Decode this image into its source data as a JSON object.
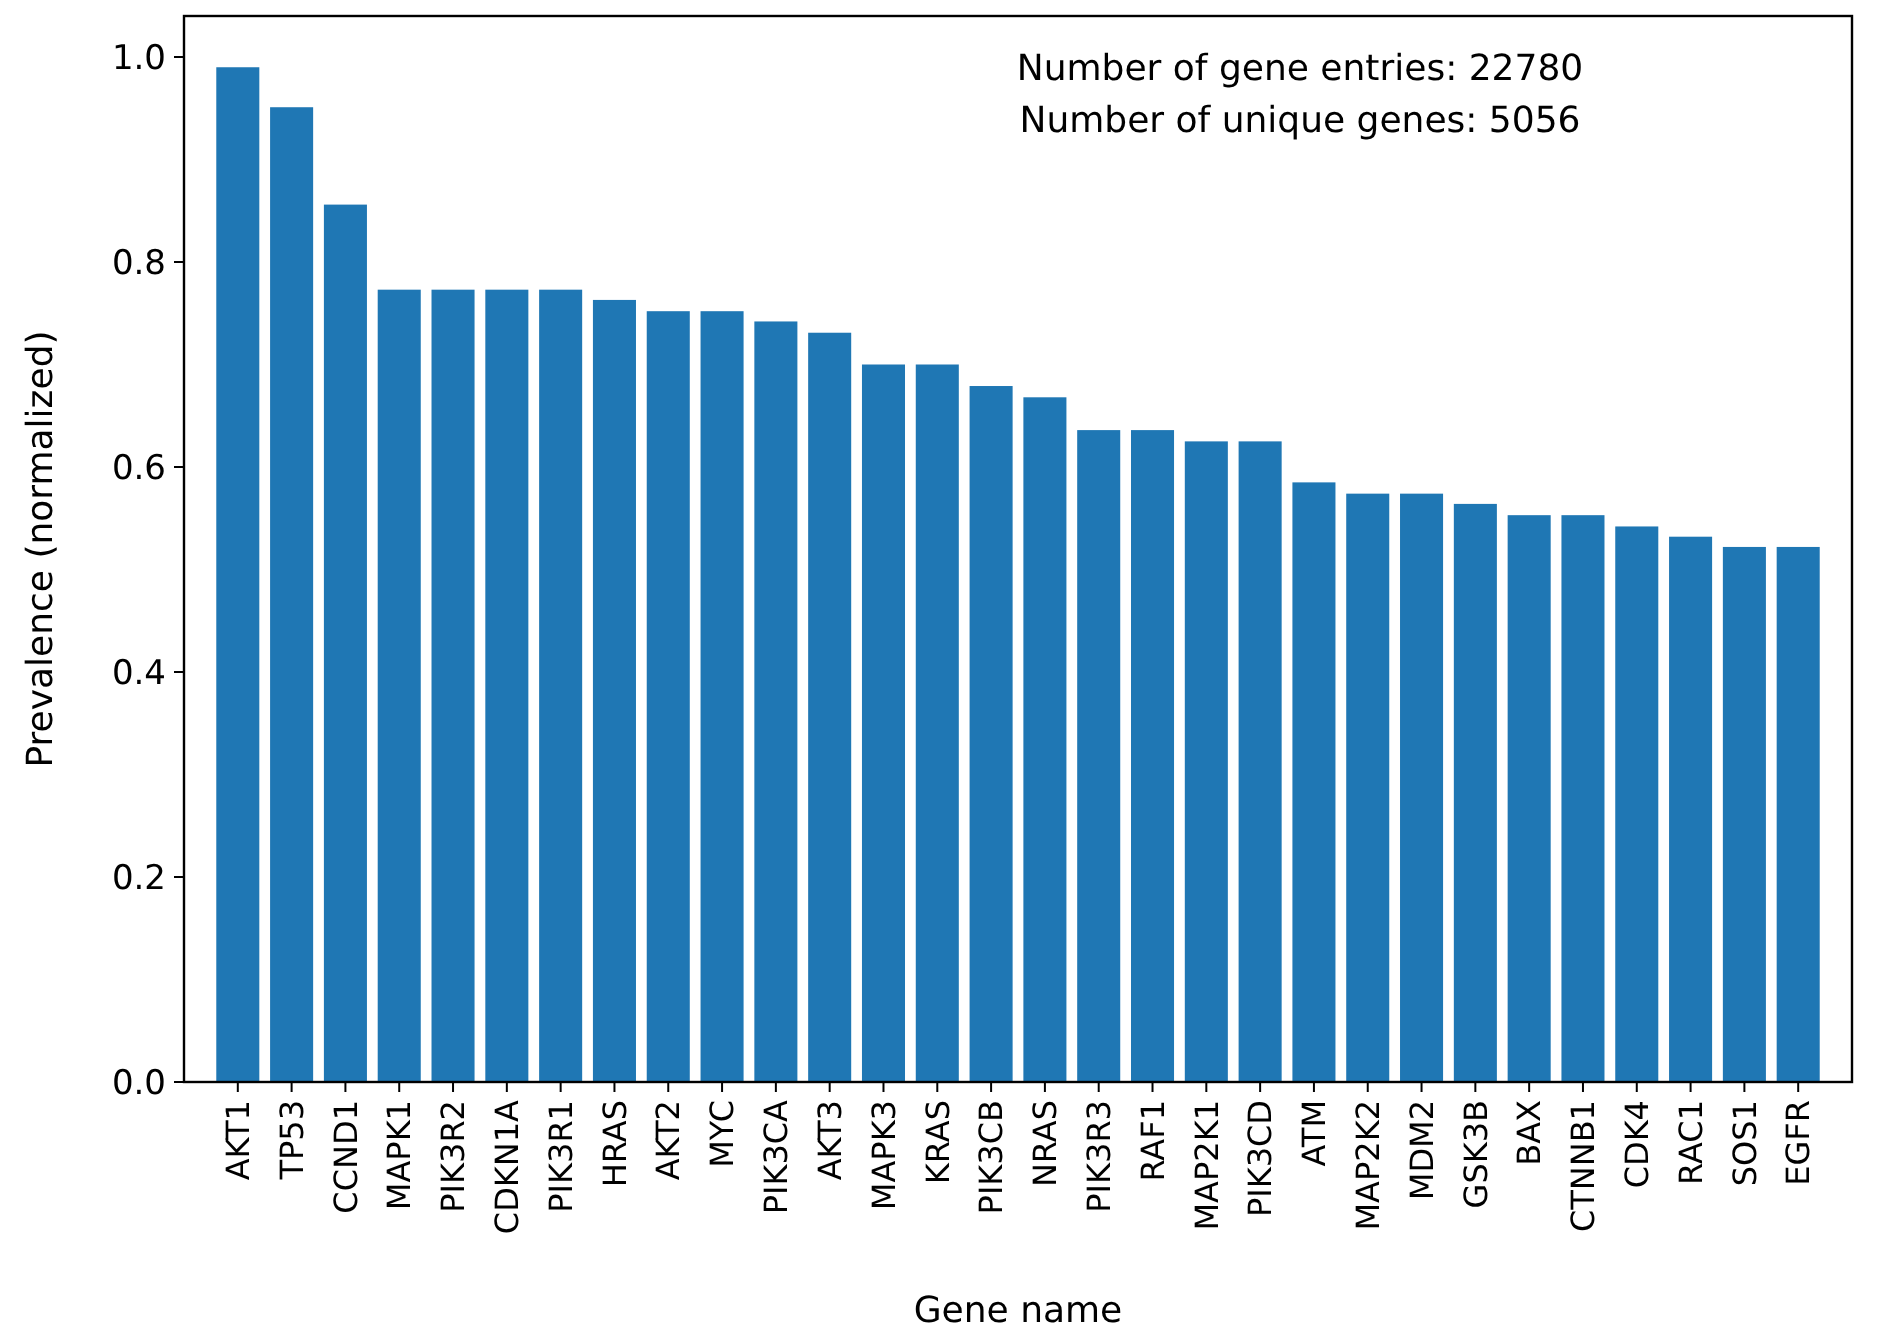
{
  "chart_data": {
    "type": "bar",
    "xlabel": "Gene name",
    "ylabel": "Prevalence (normalized)",
    "annotations": [
      "Number of gene entries: 22780",
      "Number of unique genes: 5056"
    ],
    "categories": [
      "AKT1",
      "TP53",
      "CCND1",
      "MAPK1",
      "PIK3R2",
      "CDKN1A",
      "PIK3R1",
      "HRAS",
      "AKT2",
      "MYC",
      "PIK3CA",
      "AKT3",
      "MAPK3",
      "KRAS",
      "PIK3CB",
      "NRAS",
      "PIK3R3",
      "RAF1",
      "MAP2K1",
      "PIK3CD",
      "ATM",
      "MAP2K2",
      "MDM2",
      "GSK3B",
      "BAX",
      "CTNNB1",
      "CDK4",
      "RAC1",
      "SOS1",
      "EGFR"
    ],
    "values": [
      0.99,
      0.951,
      0.856,
      0.773,
      0.773,
      0.773,
      0.773,
      0.763,
      0.752,
      0.752,
      0.742,
      0.731,
      0.7,
      0.7,
      0.679,
      0.668,
      0.636,
      0.636,
      0.625,
      0.625,
      0.585,
      0.574,
      0.574,
      0.564,
      0.553,
      0.553,
      0.542,
      0.532,
      0.522,
      0.522
    ],
    "color": "#1f77b4",
    "ylim": [
      0,
      1.04
    ],
    "yticks": [
      {
        "value": 0,
        "label": "0.0"
      },
      {
        "value": 0.2,
        "label": "0.2"
      },
      {
        "value": 0.4,
        "label": "0.4"
      },
      {
        "value": 0.6,
        "label": "0.6"
      },
      {
        "value": 0.8,
        "label": "0.8"
      },
      {
        "value": 1,
        "label": "1.0"
      }
    ]
  }
}
